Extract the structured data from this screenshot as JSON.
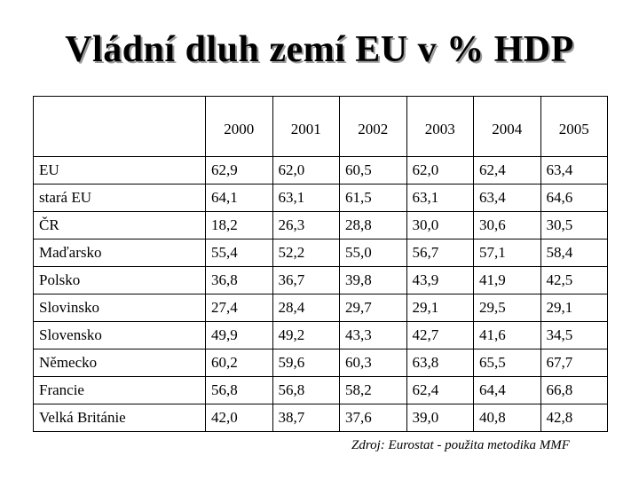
{
  "title": "Vládní dluh zemí EU v % HDP",
  "table": {
    "years": [
      "2000",
      "2001",
      "2002",
      "2003",
      "2004",
      "2005"
    ],
    "rows": [
      {
        "country": "EU",
        "values": [
          "62,9",
          "62,0",
          "60,5",
          "62,0",
          "62,4",
          "63,4"
        ]
      },
      {
        "country": "stará EU",
        "values": [
          "64,1",
          "63,1",
          "61,5",
          "63,1",
          "63,4",
          "64,6"
        ]
      },
      {
        "country": "ČR",
        "values": [
          "18,2",
          "26,3",
          "28,8",
          "30,0",
          "30,6",
          "30,5"
        ]
      },
      {
        "country": "Maďarsko",
        "values": [
          "55,4",
          "52,2",
          "55,0",
          "56,7",
          "57,1",
          "58,4"
        ]
      },
      {
        "country": "Polsko",
        "values": [
          "36,8",
          "36,7",
          "39,8",
          "43,9",
          "41,9",
          "42,5"
        ]
      },
      {
        "country": "Slovinsko",
        "values": [
          "27,4",
          "28,4",
          "29,7",
          "29,1",
          "29,5",
          "29,1"
        ]
      },
      {
        "country": "Slovensko",
        "values": [
          "49,9",
          "49,2",
          "43,3",
          "42,7",
          "41,6",
          "34,5"
        ]
      },
      {
        "country": "Německo",
        "values": [
          "60,2",
          "59,6",
          "60,3",
          "63,8",
          "65,5",
          "67,7"
        ]
      },
      {
        "country": "Francie",
        "values": [
          "56,8",
          "56,8",
          "58,2",
          "62,4",
          "64,4",
          "66,8"
        ]
      },
      {
        "country": "Velká Británie",
        "values": [
          "42,0",
          "38,7",
          "37,6",
          "39,0",
          "40,8",
          "42,8"
        ]
      }
    ]
  },
  "source": "Zdroj: Eurostat - použita metodika MMF"
}
